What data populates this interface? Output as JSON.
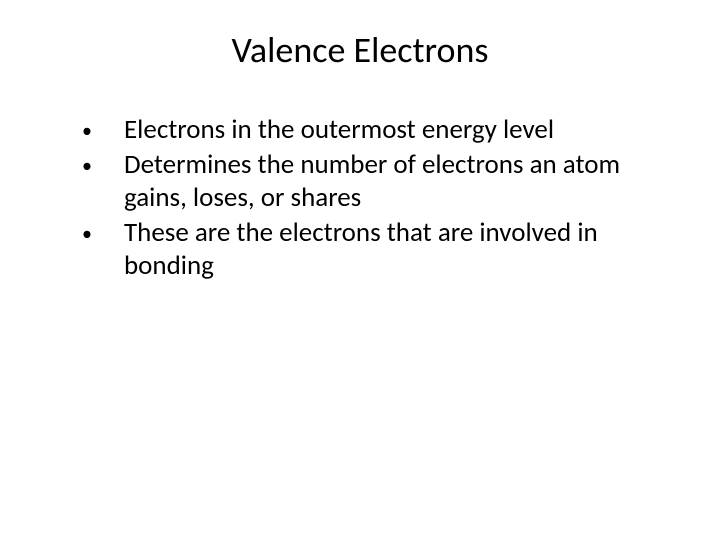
{
  "slide": {
    "title": "Valence Electrons",
    "bullets": [
      "Electrons in the outermost energy level",
      "Determines the number of electrons an atom gains, loses, or shares",
      "These are the electrons that are involved in bonding"
    ],
    "title_fontsize": 36,
    "body_fontsize": 27,
    "text_color": "#000000",
    "background_color": "#ffffff",
    "bullet_marker": "•"
  }
}
